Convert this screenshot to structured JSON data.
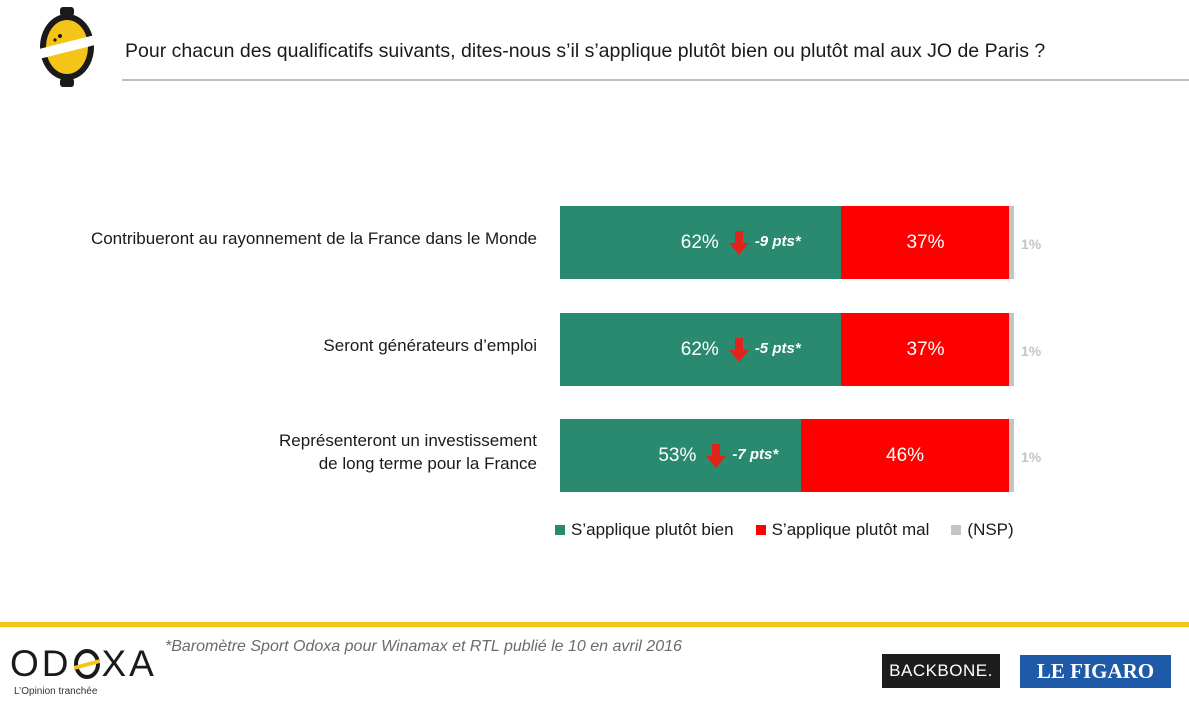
{
  "title": "Pour chacun des qualificatifs suivants, dites-nous s’il s’applique plutôt bien ou plutôt mal aux JO de Paris ?",
  "colors": {
    "good": "#2a8a70",
    "bad": "#ff0000",
    "nsp": "#c4c4c4",
    "arrow": "#e0241b",
    "accent": "#f4c418"
  },
  "chart_data": {
    "type": "bar",
    "orientation": "horizontal",
    "stacked": true,
    "categories": [
      [
        "Contribueront au rayonnement de la France dans le Monde"
      ],
      [
        "Seront générateurs d’emploi"
      ],
      [
        "Représenteront un investissement",
        "de long terme pour la France"
      ]
    ],
    "series": [
      {
        "name": "S’applique plutôt bien",
        "values": [
          62,
          62,
          53
        ],
        "labels": [
          "62%",
          "62%",
          "53%"
        ]
      },
      {
        "name": "S’applique plutôt mal",
        "values": [
          37,
          37,
          46
        ],
        "labels": [
          "37%",
          "37%",
          "46%"
        ]
      },
      {
        "name": "(NSP)",
        "values": [
          1,
          1,
          1
        ],
        "labels": [
          "1%",
          "1%",
          "1%"
        ]
      }
    ],
    "deltas": [
      "-9 pts*",
      "-5 pts*",
      "-7 pts*"
    ],
    "xlim": [
      0,
      100
    ],
    "grid": false,
    "legend": "bottom"
  },
  "footnote": "*Baromètre Sport Odoxa pour Winamax et RTL publié le 10 en avril 2016",
  "brand": {
    "name_left": "OD",
    "name_right": "XA",
    "tagline": "L’Opinion tranchée"
  },
  "partners": {
    "backbone": "BACKBONE.",
    "figaro": "LE FIGARO"
  }
}
